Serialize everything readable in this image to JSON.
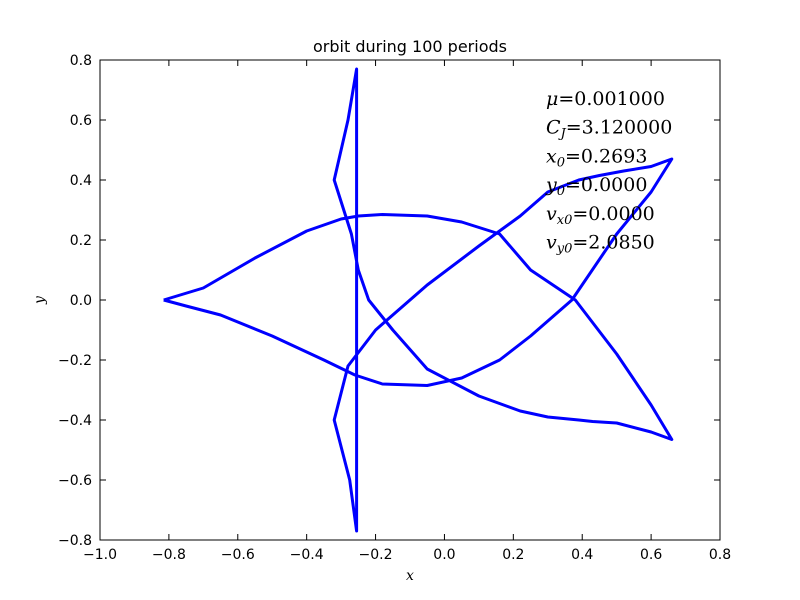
{
  "chart_data": {
    "type": "line",
    "title": "orbit during 100 periods",
    "xlabel": "x",
    "ylabel": "y",
    "xlim": [
      -1.0,
      0.8
    ],
    "ylim": [
      -0.8,
      0.8
    ],
    "xticks": [
      "−1.0",
      "−0.8",
      "−0.6",
      "−0.4",
      "−0.2",
      "0.0",
      "0.2",
      "0.4",
      "0.6",
      "0.8"
    ],
    "xtick_values": [
      -1.0,
      -0.8,
      -0.6,
      -0.4,
      -0.2,
      0.0,
      0.2,
      0.4,
      0.6,
      0.8
    ],
    "yticks": [
      "−0.8",
      "−0.6",
      "−0.4",
      "−0.2",
      "0.0",
      "0.2",
      "0.4",
      "0.6",
      "0.8"
    ],
    "ytick_values": [
      -0.8,
      -0.6,
      -0.4,
      -0.2,
      0.0,
      0.2,
      0.4,
      0.6,
      0.8
    ],
    "grid": false,
    "line_color": "#0000ff",
    "series": [
      {
        "name": "",
        "x": [
          -0.815,
          -0.7,
          -0.55,
          -0.4,
          -0.3,
          -0.25,
          -0.18,
          -0.05,
          0.05,
          0.16,
          0.25,
          0.38,
          0.5,
          0.6,
          0.66,
          0.6,
          0.5,
          0.43,
          0.39,
          0.3,
          0.22,
          0.1,
          -0.05,
          -0.15,
          -0.22,
          -0.25,
          -0.27,
          -0.32,
          -0.28,
          -0.255,
          -0.255,
          -0.275,
          -0.32,
          -0.28,
          -0.2,
          -0.05,
          0.1,
          0.22,
          0.3,
          0.39,
          0.45,
          0.52,
          0.6,
          0.66,
          0.6,
          0.5,
          0.37,
          0.25,
          0.16,
          0.05,
          -0.05,
          -0.18,
          -0.26,
          -0.35,
          -0.5,
          -0.65,
          -0.75,
          -0.815
        ],
        "y": [
          0.0,
          0.04,
          0.14,
          0.23,
          0.27,
          0.28,
          0.285,
          0.28,
          0.26,
          0.22,
          0.1,
          0.0,
          -0.18,
          -0.35,
          -0.465,
          -0.44,
          -0.41,
          -0.405,
          -0.4,
          -0.39,
          -0.37,
          -0.32,
          -0.23,
          -0.1,
          0.0,
          0.1,
          0.22,
          0.4,
          0.6,
          0.77,
          -0.77,
          -0.6,
          -0.4,
          -0.22,
          -0.1,
          0.05,
          0.18,
          0.28,
          0.36,
          0.4,
          0.415,
          0.43,
          0.445,
          0.47,
          0.36,
          0.22,
          0.0,
          -0.12,
          -0.2,
          -0.26,
          -0.285,
          -0.28,
          -0.25,
          -0.2,
          -0.12,
          -0.05,
          -0.02,
          0.0
        ]
      }
    ],
    "annotations": [
      {
        "sym": "μ",
        "sub": "",
        "value": "=0.001000"
      },
      {
        "sym": "C",
        "sub": "J",
        "value": "=3.120000"
      },
      {
        "sym": "x",
        "sub": "0",
        "value": "=0.2693"
      },
      {
        "sym": "y",
        "sub": "0",
        "value": "=0.0000"
      },
      {
        "sym": "v",
        "sub": "x0",
        "value": "=0.0000"
      },
      {
        "sym": "v",
        "sub": "y0",
        "value": "=2.0850"
      }
    ]
  }
}
